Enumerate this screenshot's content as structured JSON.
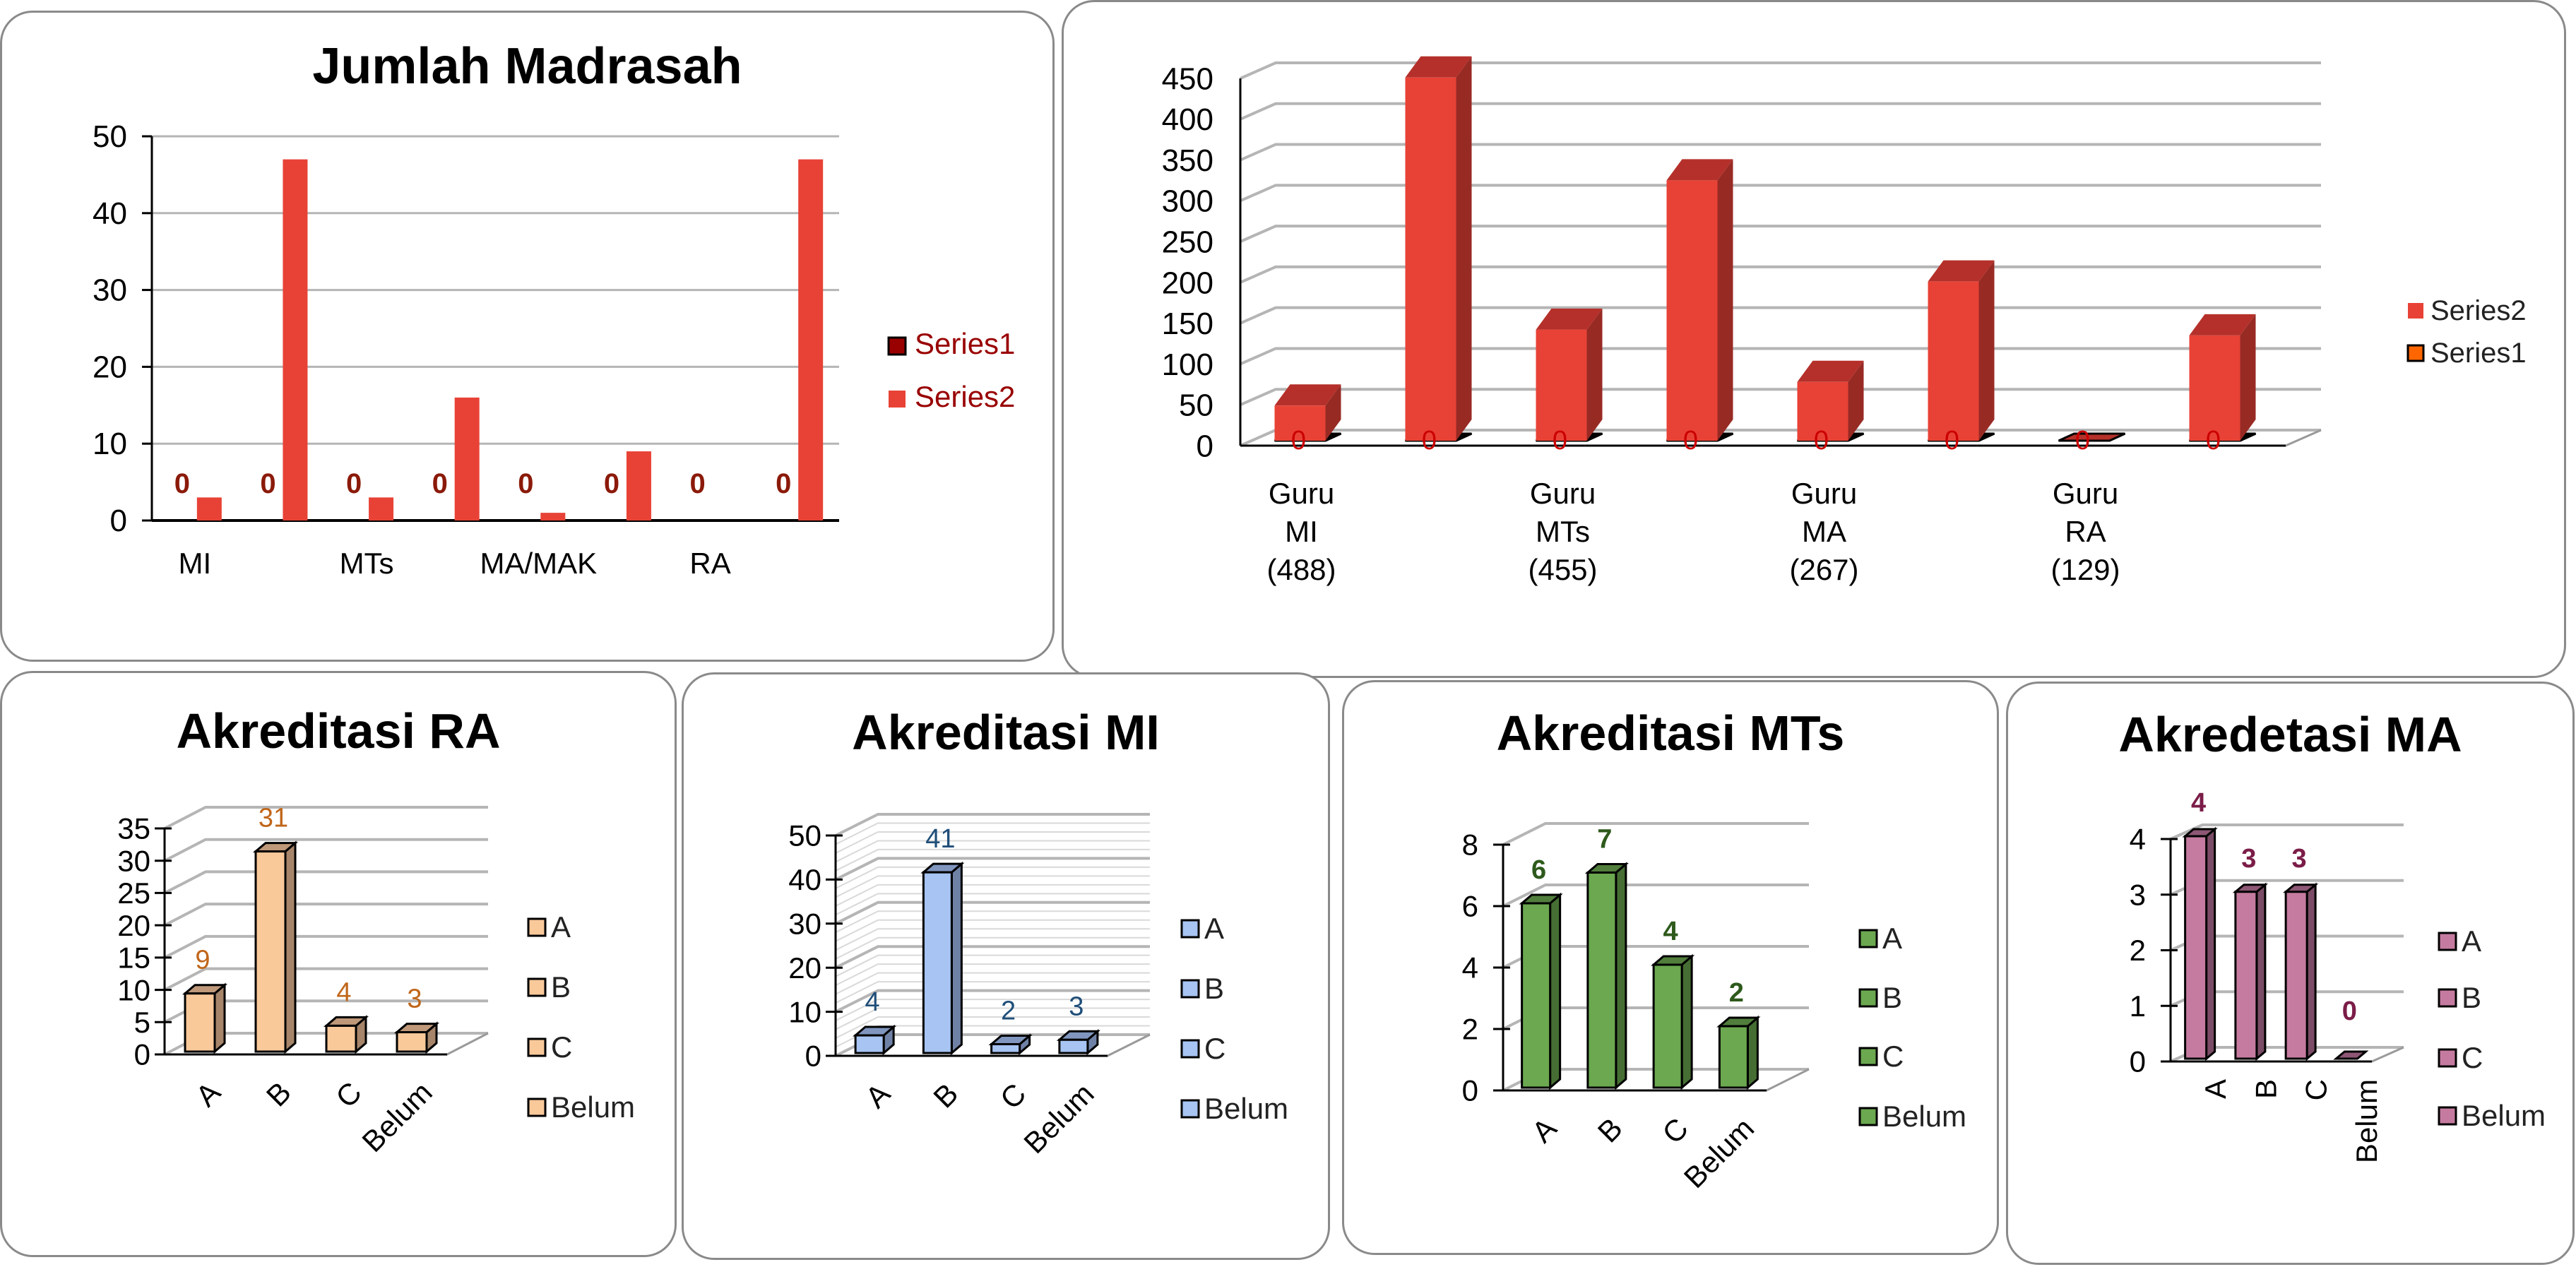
{
  "chart_data": [
    {
      "id": "jumlah-madrasah",
      "type": "bar",
      "title": "Jumlah Madrasah",
      "categories": [
        "MI",
        "",
        "MTs",
        "",
        "MA/MAK",
        "",
        "RA",
        ""
      ],
      "series": [
        {
          "name": "Series1",
          "values": [
            0,
            0,
            0,
            0,
            0,
            0,
            0,
            0
          ],
          "color": "#990000",
          "data_labels": [
            "0",
            "0",
            "0",
            "0",
            "0",
            "0",
            "0",
            "0"
          ],
          "label_color": "#8B1A0A"
        },
        {
          "name": "Series2",
          "values": [
            3,
            47,
            3,
            16,
            1,
            9,
            0,
            47
          ],
          "color": "#E84236"
        }
      ],
      "legend": [
        {
          "label": "Series1",
          "color": "#990000",
          "outlined": true
        },
        {
          "label": "Series2",
          "color": "#E84236",
          "outlined": false
        }
      ],
      "legend_text_color": "#990000",
      "legend_position": "right",
      "yticks": [
        "0",
        "10",
        "20",
        "30",
        "40",
        "50"
      ],
      "ylim": [
        0,
        50
      ],
      "xlabel": "",
      "ylabel": "",
      "grid": true,
      "three_d": false
    },
    {
      "id": "jumlah-guru",
      "type": "bar",
      "title": "",
      "categories": [
        "Guru\nMI\n(488)",
        "",
        "Guru\nMTs\n(455)",
        "",
        "Guru\nMA\n(267)",
        "",
        "Guru\nRA\n(129)",
        ""
      ],
      "category_lines": [
        [
          "Guru",
          "MI",
          "(488)"
        ],
        [],
        [
          "Guru",
          "MTs",
          "(455)"
        ],
        [],
        [
          "Guru",
          "MA",
          "(267)"
        ],
        [],
        [
          "Guru",
          "RA",
          "(129)"
        ],
        []
      ],
      "series": [
        {
          "name": "Series1",
          "values": [
            0,
            0,
            0,
            0,
            0,
            0,
            0,
            0
          ],
          "color": "#FF6600",
          "data_labels": [
            "0",
            "0",
            "0",
            "0",
            "0",
            "0",
            "0",
            "0"
          ],
          "label_color": "#CC0000"
        },
        {
          "name": "Series2",
          "values": [
            43,
            445,
            136,
            319,
            72,
            195,
            0,
            129
          ],
          "color": "#E84236"
        }
      ],
      "legend": [
        {
          "label": "Series2",
          "color": "#E84236",
          "outlined": false
        },
        {
          "label": "Series1",
          "color": "#FF6600",
          "outlined": true
        }
      ],
      "legend_text_color": "#222222",
      "legend_position": "right",
      "yticks": [
        "0",
        "50",
        "100",
        "150",
        "200",
        "250",
        "300",
        "350",
        "400",
        "450"
      ],
      "ylim": [
        0,
        450
      ],
      "xlabel": "",
      "ylabel": "",
      "grid": true,
      "three_d": true
    },
    {
      "id": "akreditasi-ra",
      "type": "bar",
      "title": "Akreditasi RA",
      "categories": [
        "A",
        "B",
        "C",
        "Belum"
      ],
      "values": [
        9,
        31,
        4,
        3
      ],
      "data_labels": [
        "9",
        "31",
        "4",
        "3"
      ],
      "label_color": "#C0661A",
      "label_bold": false,
      "color": "#FAC99A",
      "side_color": "#A6856A",
      "legend": [
        "A",
        "B",
        "C",
        "Belum"
      ],
      "legend_position": "right",
      "yticks": [
        "0",
        "5",
        "10",
        "15",
        "20",
        "25",
        "30",
        "35"
      ],
      "ylim": [
        0,
        35
      ],
      "xlabel": "",
      "ylabel": "",
      "grid": true,
      "three_d": true,
      "label_rotation": "diagonal"
    },
    {
      "id": "akreditasi-mi",
      "type": "bar",
      "title": "Akreditasi MI",
      "categories": [
        "A",
        "B",
        "C",
        "Belum"
      ],
      "values": [
        4,
        41,
        2,
        3
      ],
      "data_labels": [
        "4",
        "41",
        "2",
        "3"
      ],
      "label_color": "#1F4E79",
      "label_bold": false,
      "color": "#A7C4F2",
      "side_color": "#6F82A6",
      "legend": [
        "A",
        "B",
        "C",
        "Belum"
      ],
      "legend_position": "right",
      "yticks": [
        "0",
        "10",
        "20",
        "30",
        "40",
        "50"
      ],
      "ylim": [
        0,
        50
      ],
      "minor_grid_step": 2,
      "xlabel": "",
      "ylabel": "",
      "grid": true,
      "three_d": true,
      "label_rotation": "diagonal"
    },
    {
      "id": "akreditasi-mts",
      "type": "bar",
      "title": "Akreditasi MTs",
      "categories": [
        "A",
        "B",
        "C",
        "Belum"
      ],
      "values": [
        6,
        7,
        4,
        2
      ],
      "data_labels": [
        "6",
        "7",
        "4",
        "2"
      ],
      "label_color": "#2E5A1C",
      "label_bold": true,
      "color": "#6BA84F",
      "side_color": "#466E34",
      "legend": [
        "A",
        "B",
        "C",
        "Belum"
      ],
      "legend_position": "right",
      "yticks": [
        "0",
        "2",
        "4",
        "6",
        "8"
      ],
      "ylim": [
        0,
        8
      ],
      "xlabel": "",
      "ylabel": "",
      "grid": true,
      "three_d": true,
      "label_rotation": "diagonal"
    },
    {
      "id": "akreditasi-ma",
      "type": "bar",
      "title": "Akredetasi MA",
      "categories": [
        "A",
        "B",
        "C",
        "Belum"
      ],
      "values": [
        4,
        3,
        3,
        0
      ],
      "data_labels": [
        "4",
        "3",
        "3",
        "0"
      ],
      "label_color": "#7B1D48",
      "label_bold": true,
      "color": "#C57B9F",
      "side_color": "#7B4C66",
      "legend": [
        "A",
        "B",
        "C",
        "Belum"
      ],
      "legend_position": "right",
      "yticks": [
        "0",
        "1",
        "2",
        "3",
        "4"
      ],
      "ylim": [
        0,
        4
      ],
      "xlabel": "",
      "ylabel": "",
      "grid": true,
      "three_d": true,
      "label_rotation": "vertical"
    }
  ]
}
